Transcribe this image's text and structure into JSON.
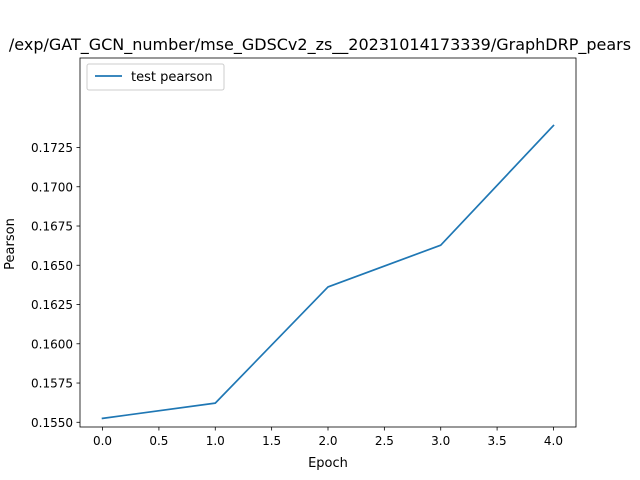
{
  "chart_data": {
    "type": "line",
    "title": "/exp/GAT_GCN_number/mse_GDSCv2_zs__20231014173339/GraphDRP_pears",
    "xlabel": "Epoch",
    "ylabel": "Pearson",
    "xlim": [
      -0.2,
      4.2
    ],
    "ylim": [
      0.1547,
      0.1782
    ],
    "xticks": [
      0.0,
      0.5,
      1.0,
      1.5,
      2.0,
      2.5,
      3.0,
      3.5,
      4.0
    ],
    "xtick_labels": [
      "0.0",
      "0.5",
      "1.0",
      "1.5",
      "2.0",
      "2.5",
      "3.0",
      "3.5",
      "4.0"
    ],
    "yticks": [
      0.155,
      0.1575,
      0.16,
      0.1625,
      0.165,
      0.1675,
      0.17,
      0.1725
    ],
    "ytick_labels": [
      "0.1550",
      "0.1575",
      "0.1600",
      "0.1625",
      "0.1650",
      "0.1675",
      "0.1700",
      "0.1725"
    ],
    "grid": false,
    "legend_position": "upper-left",
    "series": [
      {
        "name": "test pearson",
        "color": "#1f77b4",
        "x": [
          0,
          1,
          2,
          3,
          4
        ],
        "y": [
          0.15525,
          0.15622,
          0.16362,
          0.16628,
          0.1739
        ]
      }
    ]
  }
}
